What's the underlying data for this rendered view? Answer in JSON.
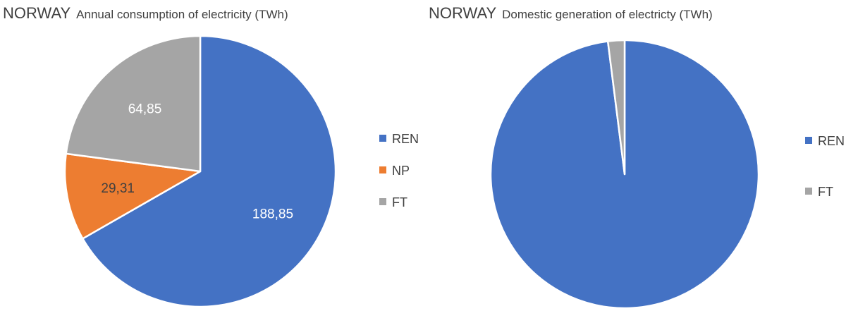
{
  "chart_data": [
    {
      "type": "pie",
      "title_prefix": "NORWAY",
      "title": "Annual consumption of electricity (TWh)",
      "slices": [
        {
          "name": "REN",
          "value": 188.85,
          "label": "188,85",
          "color": "#4472C4",
          "label_color": "#ffffff"
        },
        {
          "name": "NP",
          "value": 29.31,
          "label": "29,31",
          "color": "#ED7D31",
          "label_color": "#404040"
        },
        {
          "name": "FT",
          "value": 64.85,
          "label": "64,85",
          "color": "#A5A5A5",
          "label_color": "#ffffff"
        }
      ],
      "legend": [
        "REN",
        "NP",
        "FT"
      ],
      "legend_position": "right",
      "start_angle_deg": 0,
      "direction": "clockwise"
    },
    {
      "type": "pie",
      "title_prefix": "NORWAY",
      "title": "Domestic generation of electricty (TWh)",
      "slices": [
        {
          "name": "REN",
          "value": 98,
          "label": "",
          "color": "#4472C4"
        },
        {
          "name": "FT",
          "value": 2,
          "label": "",
          "color": "#A5A5A5"
        }
      ],
      "legend": [
        "REN",
        "FT"
      ],
      "legend_position": "right",
      "start_angle_deg": 0,
      "direction": "clockwise"
    }
  ]
}
